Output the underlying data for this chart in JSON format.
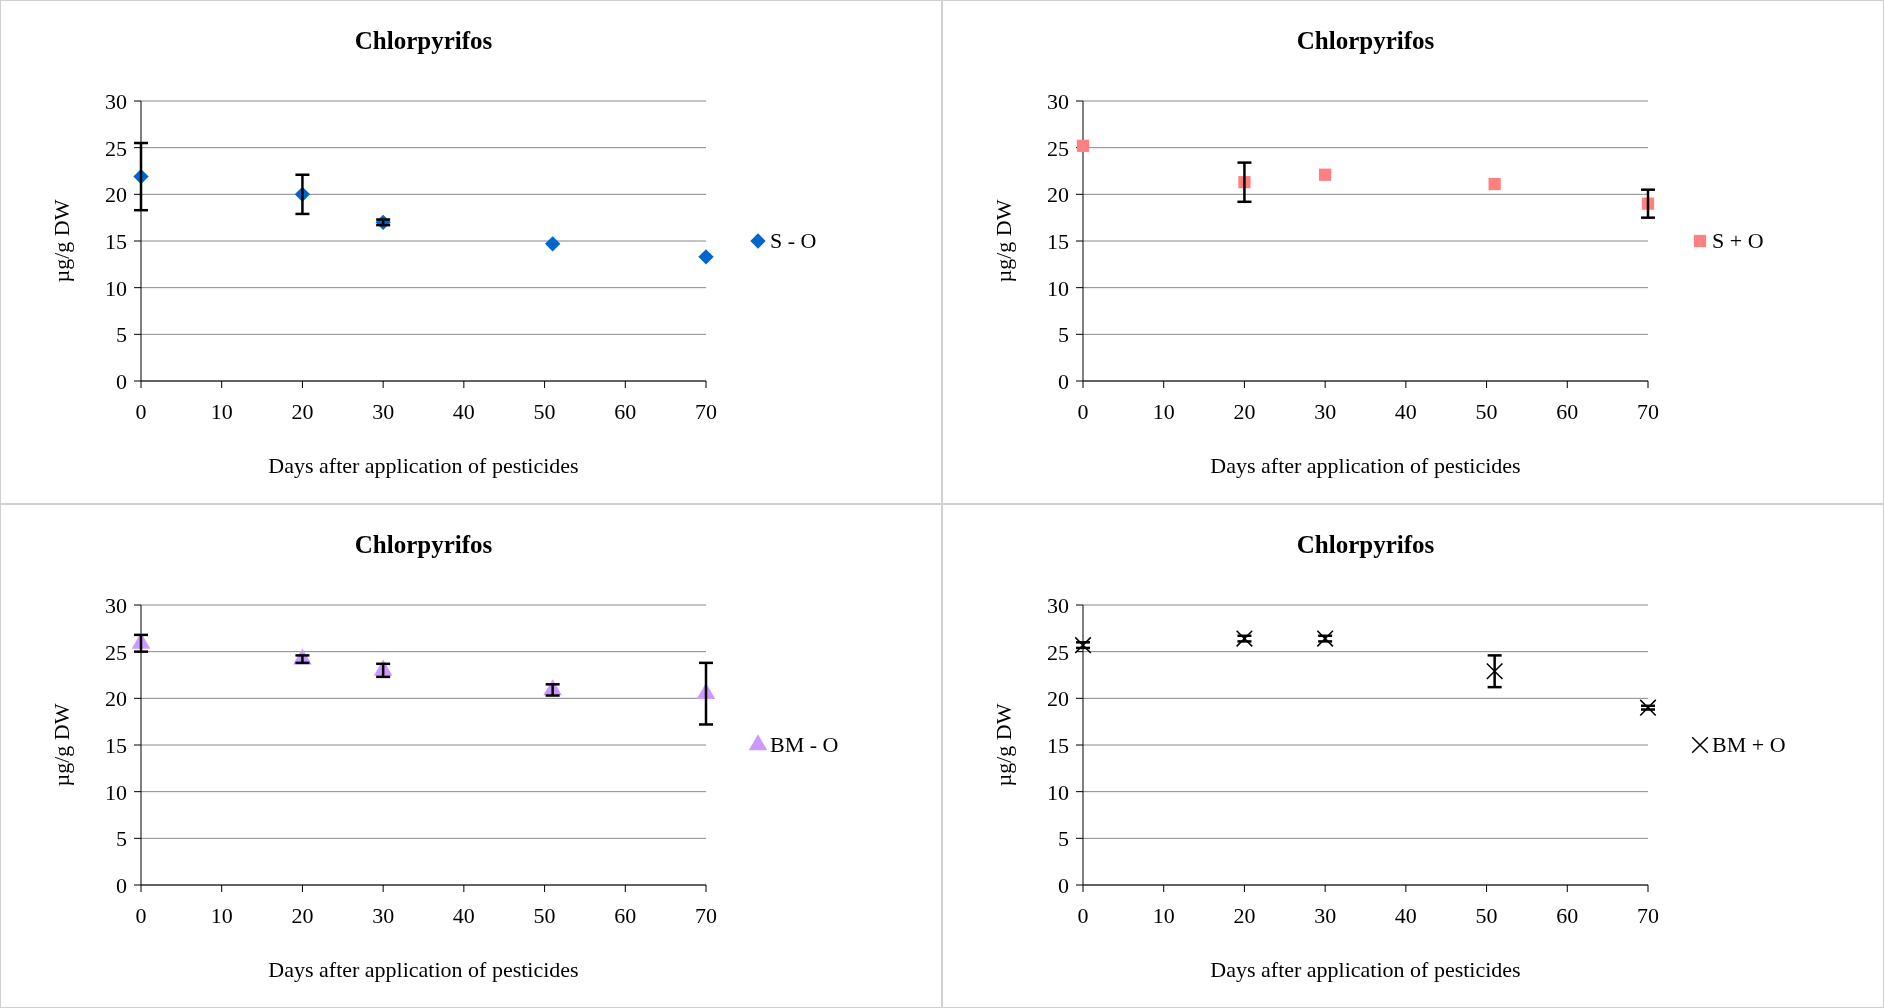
{
  "chart_data": [
    {
      "type": "scatter",
      "title": "Chlorpyrifos",
      "xlabel": "Days after application of pesticides",
      "ylabel": "µg/g DW",
      "x": [
        0,
        20,
        30,
        51,
        70
      ],
      "xlim": [
        0,
        70
      ],
      "xticks": [
        0,
        10,
        20,
        30,
        40,
        50,
        60,
        70
      ],
      "ylim": [
        0,
        30
      ],
      "yticks": [
        0,
        5,
        10,
        15,
        20,
        25,
        30
      ],
      "grid": "y",
      "legend": "right",
      "marker": "diamond",
      "series": [
        {
          "name": "S - O",
          "color": "#0066cc",
          "values": [
            21.9,
            20,
            17,
            14.7,
            13.3
          ],
          "errors": [
            3.6,
            2.1,
            0.3,
            null,
            null
          ]
        }
      ]
    },
    {
      "type": "scatter",
      "title": "Chlorpyrifos",
      "xlabel": "Days after application of pesticides",
      "ylabel": "µg/g DW",
      "x": [
        0,
        20,
        30,
        51,
        70
      ],
      "xlim": [
        0,
        70
      ],
      "xticks": [
        0,
        10,
        20,
        30,
        40,
        50,
        60,
        70
      ],
      "ylim": [
        0,
        30
      ],
      "yticks": [
        0,
        5,
        10,
        15,
        20,
        25,
        30
      ],
      "grid": "y",
      "legend": "right",
      "marker": "square",
      "series": [
        {
          "name": "S + O",
          "color": "#ff8080",
          "values": [
            25.2,
            21.3,
            22.1,
            21.1,
            19
          ],
          "errors": [
            null,
            2.1,
            null,
            null,
            1.5
          ]
        }
      ]
    },
    {
      "type": "scatter",
      "title": "Chlorpyrifos",
      "xlabel": "Days after application of pesticides",
      "ylabel": "µg/g DW",
      "x": [
        0,
        20,
        30,
        51,
        70
      ],
      "xlim": [
        0,
        70
      ],
      "xticks": [
        0,
        10,
        20,
        30,
        40,
        50,
        60,
        70
      ],
      "ylim": [
        0,
        30
      ],
      "yticks": [
        0,
        5,
        10,
        15,
        20,
        25,
        30
      ],
      "grid": "y",
      "legend": "right",
      "marker": "triangle",
      "series": [
        {
          "name": "BM - O",
          "color": "#cc99ff",
          "values": [
            25.9,
            24.2,
            23,
            20.9,
            20.5
          ],
          "errors": [
            0.9,
            0.4,
            0.7,
            0.6,
            3.3
          ]
        }
      ]
    },
    {
      "type": "scatter",
      "title": "Chlorpyrifos",
      "xlabel": "Days after application of pesticides",
      "ylabel": "µg/g DW",
      "x": [
        0,
        20,
        30,
        51,
        70
      ],
      "xlim": [
        0,
        70
      ],
      "xticks": [
        0,
        10,
        20,
        30,
        40,
        50,
        60,
        70
      ],
      "ylim": [
        0,
        30
      ],
      "yticks": [
        0,
        5,
        10,
        15,
        20,
        25,
        30
      ],
      "grid": "y",
      "legend": "right",
      "marker": "cross",
      "series": [
        {
          "name": "BM + O",
          "color": "#000000",
          "values": [
            25.7,
            26.4,
            26.4,
            22.9,
            19
          ],
          "errors": [
            0.3,
            0.3,
            0.3,
            1.7,
            0.2
          ]
        }
      ]
    }
  ]
}
